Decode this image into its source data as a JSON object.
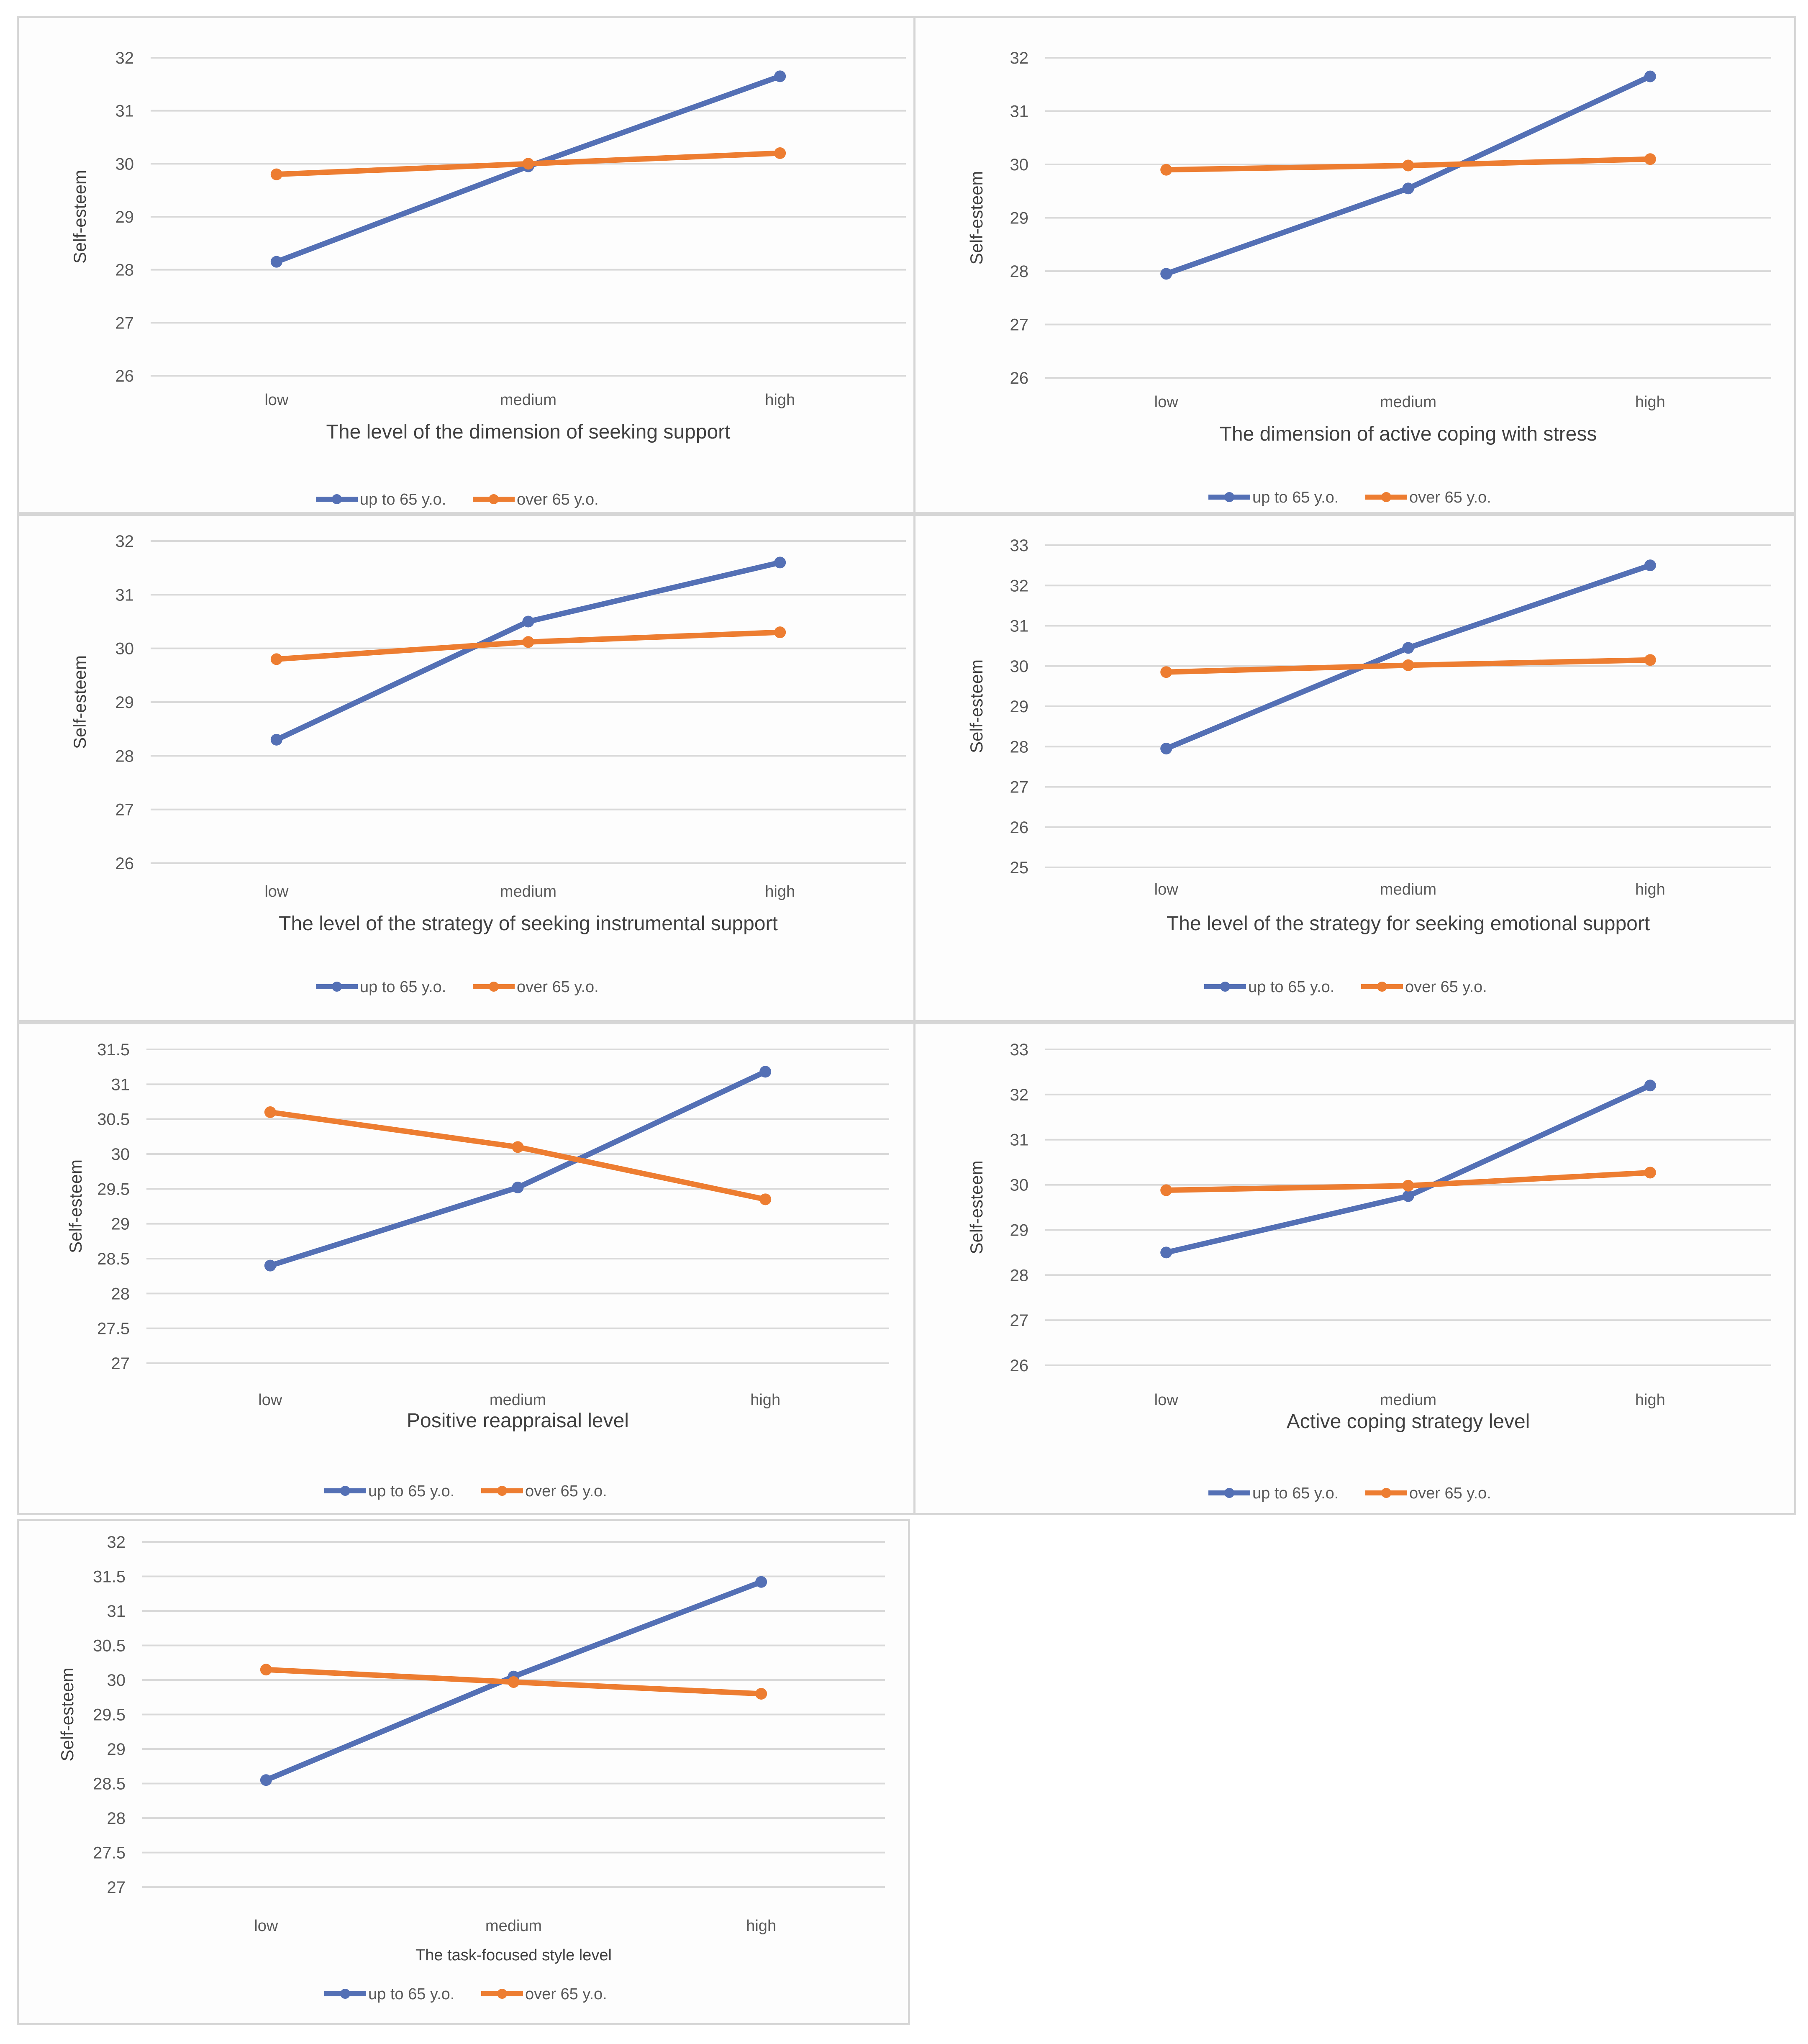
{
  "colors": {
    "up_to_65": "#5470b5",
    "over_65": "#ed7d31"
  },
  "legend": {
    "up_to_65": "up to 65 y.o.",
    "over_65": "over 65 y.o."
  },
  "chart_data": [
    {
      "type": "line",
      "xlabel": "The level of the dimension of seeking support",
      "ylabel": "Self-esteem",
      "categories": [
        "low",
        "medium",
        "high"
      ],
      "yticks": [
        "26",
        "27",
        "28",
        "29",
        "30",
        "31",
        "32"
      ],
      "ylim": [
        26,
        32
      ],
      "series": [
        {
          "name": "up to 65 y.o.",
          "values": [
            28.15,
            29.95,
            31.65
          ]
        },
        {
          "name": "over 65 y.o.",
          "values": [
            29.8,
            30.0,
            30.2
          ]
        }
      ]
    },
    {
      "type": "line",
      "xlabel": "The dimension of active coping with stress",
      "ylabel": "Self-esteem",
      "categories": [
        "low",
        "medium",
        "high"
      ],
      "yticks": [
        "26",
        "27",
        "28",
        "29",
        "30",
        "31",
        "32"
      ],
      "ylim": [
        26,
        32
      ],
      "series": [
        {
          "name": "up to 65 y.o.",
          "values": [
            27.95,
            29.55,
            31.65
          ]
        },
        {
          "name": "over 65 y.o.",
          "values": [
            29.9,
            29.98,
            30.1
          ]
        }
      ]
    },
    {
      "type": "line",
      "xlabel": "The level of the strategy of seeking instrumental support",
      "ylabel": "Self-esteem",
      "categories": [
        "low",
        "medium",
        "high"
      ],
      "yticks": [
        "26",
        "27",
        "28",
        "29",
        "30",
        "31",
        "32"
      ],
      "ylim": [
        26,
        32
      ],
      "series": [
        {
          "name": "up to 65 y.o.",
          "values": [
            28.3,
            30.5,
            31.6
          ]
        },
        {
          "name": "over 65 y.o.",
          "values": [
            29.8,
            30.12,
            30.3
          ]
        }
      ]
    },
    {
      "type": "line",
      "xlabel": "The level of the strategy for seeking emotional support",
      "ylabel": "Self-esteem",
      "categories": [
        "low",
        "medium",
        "high"
      ],
      "yticks": [
        "25",
        "26",
        "27",
        "28",
        "29",
        "30",
        "31",
        "32",
        "33"
      ],
      "ylim": [
        25,
        33
      ],
      "series": [
        {
          "name": "up to 65 y.o.",
          "values": [
            27.95,
            30.45,
            32.5
          ]
        },
        {
          "name": "over 65 y.o.",
          "values": [
            29.85,
            30.02,
            30.15
          ]
        }
      ]
    },
    {
      "type": "line",
      "xlabel": "Positive reappraisal level",
      "ylabel": "Self-esteem",
      "categories": [
        "low",
        "medium",
        "high"
      ],
      "yticks": [
        "27",
        "27.5",
        "28",
        "28.5",
        "29",
        "29.5",
        "30",
        "30.5",
        "31",
        "31.5"
      ],
      "ylim": [
        27,
        31.5
      ],
      "series": [
        {
          "name": "up to 65 y.o.",
          "values": [
            28.4,
            29.52,
            31.18
          ]
        },
        {
          "name": "over 65 y.o.",
          "values": [
            30.6,
            30.1,
            29.35
          ]
        }
      ]
    },
    {
      "type": "line",
      "xlabel": "Active coping strategy level",
      "ylabel": "Self-esteem",
      "categories": [
        "low",
        "medium",
        "high"
      ],
      "yticks": [
        "26",
        "27",
        "28",
        "29",
        "30",
        "31",
        "32",
        "33"
      ],
      "ylim": [
        26,
        33
      ],
      "series": [
        {
          "name": "up to 65 y.o.",
          "values": [
            28.5,
            29.75,
            32.2
          ]
        },
        {
          "name": "over 65 y.o.",
          "values": [
            29.88,
            29.98,
            30.27
          ]
        }
      ]
    },
    {
      "type": "line",
      "xlabel": "The task-focused style level",
      "ylabel": "Self-esteem",
      "categories": [
        "low",
        "medium",
        "high"
      ],
      "yticks": [
        "27",
        "27.5",
        "28",
        "28.5",
        "29",
        "29.5",
        "30",
        "30.5",
        "31",
        "31.5",
        "32"
      ],
      "ylim": [
        27,
        32
      ],
      "series": [
        {
          "name": "up to 65 y.o.",
          "values": [
            28.55,
            30.05,
            31.42
          ]
        },
        {
          "name": "over 65 y.o.",
          "values": [
            30.15,
            29.97,
            29.8
          ]
        }
      ]
    }
  ]
}
